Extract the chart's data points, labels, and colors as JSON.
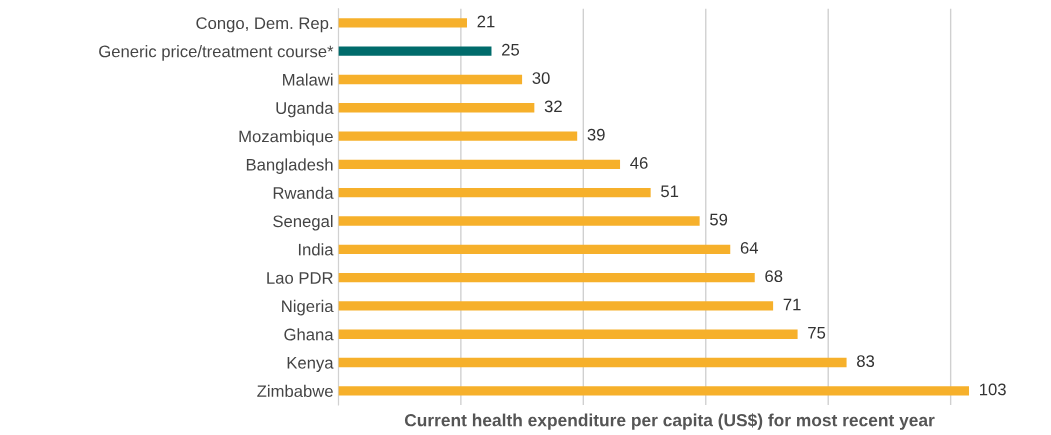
{
  "chart_data": {
    "type": "bar",
    "orientation": "horizontal",
    "xlabel": "Current health expenditure per capita (US$) for most recent year",
    "categories": [
      "Congo, Dem. Rep.",
      "Generic price/treatment course*",
      "Malawi",
      "Uganda",
      "Mozambique",
      "Bangladesh",
      "Rwanda",
      "Senegal",
      "India",
      "Lao PDR",
      "Nigeria",
      "Ghana",
      "Kenya",
      "Zimbabwe"
    ],
    "values": [
      21,
      25,
      30,
      32,
      39,
      46,
      51,
      59,
      64,
      68,
      71,
      75,
      83,
      103
    ],
    "colors": [
      "#f6b02b",
      "#006b6b",
      "#f6b02b",
      "#f6b02b",
      "#f6b02b",
      "#f6b02b",
      "#f6b02b",
      "#f6b02b",
      "#f6b02b",
      "#f6b02b",
      "#f6b02b",
      "#f6b02b",
      "#f6b02b",
      "#f6b02b"
    ],
    "grid": "x",
    "tick_labels": "y",
    "data_labels": true
  }
}
